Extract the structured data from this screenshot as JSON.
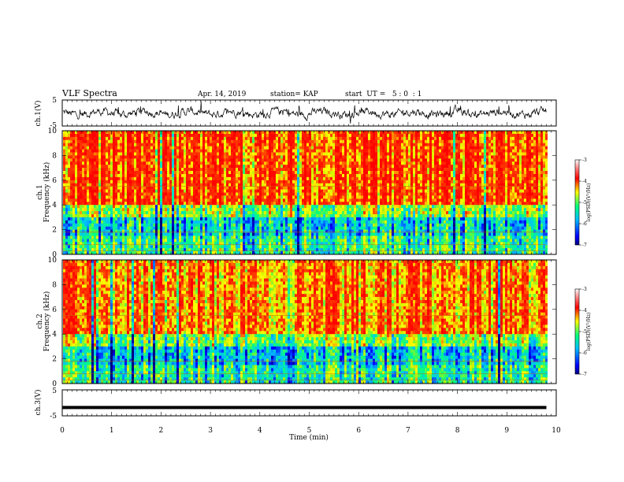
{
  "header": {
    "title": "VLF Spectra",
    "date": "Apr. 14, 2019",
    "station": "station= KAP",
    "start": "start  UT =   5 : 0  : 1"
  },
  "chart_data": [
    {
      "type": "line",
      "panel": "ch1-waveform",
      "ylabel": "ch.1(V)",
      "ylim": [
        -5,
        5
      ],
      "yticks": [
        "5",
        "-5"
      ],
      "x_range_min": [
        0,
        9.8
      ],
      "description_values": "noisy waveform mostly between -2 and 2 V with spikes to about +4 and -3"
    },
    {
      "type": "heatmap",
      "panel": "ch1-spectrogram",
      "ylabel_channel": "ch.1",
      "ylabel": "Frequency (kHz)",
      "ylim": [
        0,
        10
      ],
      "yticks": [
        "0",
        "2",
        "4",
        "6",
        "8",
        "10"
      ],
      "x_range_min": [
        0,
        9.8
      ],
      "colorbar": {
        "label": "log(PSD)(V²/Hz)",
        "range": [
          -7,
          -3
        ],
        "ticks": [
          "-3",
          "-4",
          "-5",
          "-6",
          "-7"
        ],
        "colors": [
          "#000080",
          "#0000ff",
          "#00c0ff",
          "#00ff80",
          "#ffff00",
          "#ff0000",
          "#ffffff"
        ]
      }
    },
    {
      "type": "heatmap",
      "panel": "ch2-spectrogram",
      "ylabel_channel": "ch.2",
      "ylabel": "Frequency (kHz)",
      "ylim": [
        0,
        10
      ],
      "yticks": [
        "0",
        "2",
        "4",
        "6",
        "8",
        "10"
      ],
      "x_range_min": [
        0,
        9.8
      ],
      "colorbar": {
        "label": "log(PSD)(V²/Hz)",
        "range": [
          -7,
          -3
        ],
        "ticks": [
          "-3",
          "-4",
          "-5",
          "-6",
          "-7"
        ],
        "colors": [
          "#000080",
          "#0000ff",
          "#00c0ff",
          "#00ff80",
          "#ffff00",
          "#ff0000",
          "#ffffff"
        ]
      }
    },
    {
      "type": "line",
      "panel": "ch3-waveform",
      "ylabel": "ch.3(V)",
      "ylim": [
        -5,
        5
      ],
      "yticks": [
        "5",
        "-5"
      ],
      "x_range_min": [
        0,
        9.8
      ],
      "constant_value": -1.8
    }
  ],
  "xaxis": {
    "label": "Time (min)",
    "ticks": [
      "0",
      "1",
      "2",
      "3",
      "4",
      "5",
      "6",
      "7",
      "8",
      "9",
      "10"
    ],
    "range": [
      0,
      10
    ]
  }
}
